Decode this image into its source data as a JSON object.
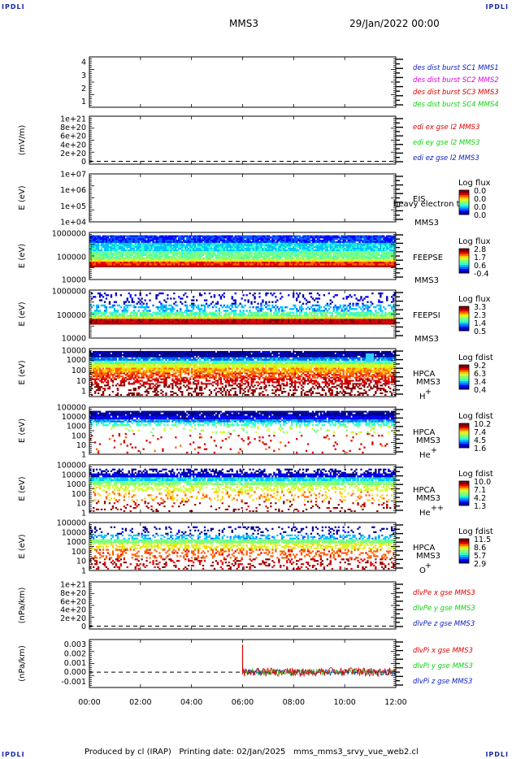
{
  "corners": {
    "tl": "IPDLI",
    "tr": "IPDLI",
    "bl": "IPDLI",
    "br": "IPDLI"
  },
  "header": {
    "spacecraft": "MMS3",
    "date": "29/Jan/2022 00:00"
  },
  "footer": {
    "producer": "Produced by cl (IRAP)",
    "printing": "Printing date: 02/Jan/2025",
    "file": "mms_mms3_srvy_vue_web2.cl"
  },
  "colors": {
    "red": "#e00000",
    "green": "#10d010",
    "blue": "#1020c0",
    "magenta": "#e000e0",
    "dark": "#000000"
  },
  "chart_data": {
    "type": "stacked-timeseries",
    "x_ticks": [
      "00:00",
      "02:00",
      "04:00",
      "06:00",
      "08:00",
      "10:00",
      "12:00"
    ],
    "xlim_hours": [
      0,
      12
    ],
    "panels": [
      {
        "id": "p1",
        "type": "line",
        "ylabel": "",
        "yticks": [
          "4",
          "3",
          "2",
          "1"
        ],
        "legend": [
          {
            "text": "des dist burst SC1 MMS1",
            "color": "#1020c0"
          },
          {
            "text": "des dist burst SC2 MMS2",
            "color": "#e000e0"
          },
          {
            "text": "des dist burst SC3 MMS3",
            "color": "#e00000"
          },
          {
            "text": "des dist burst SC4 MMS4",
            "color": "#10d010"
          }
        ]
      },
      {
        "id": "p2",
        "type": "line",
        "ylabel": "(mV/m)",
        "yticks": [
          "1e+21",
          "8e+20",
          "6e+20",
          "4e+20",
          "2e+20",
          "0"
        ],
        "zero_dashed": true,
        "legend": [
          {
            "text": "edi ex gse l2 MMS3",
            "color": "#e00000"
          },
          {
            "text": "edi ey gse l2 MMS3",
            "color": "#10d010"
          },
          {
            "text": "edi ez gse l2 MMS3",
            "color": "#1020c0"
          }
        ]
      },
      {
        "id": "p3",
        "type": "heatmap",
        "ylabel": "E (eV)",
        "yticks": [
          "1e+07",
          "1e+06",
          "1e+05",
          "1e+04"
        ],
        "instrument": "EIS",
        "sc": "MMS3",
        "overlay": "heavy electron to",
        "cbar_title": "Log flux",
        "cbar_ticks": [
          "0.0",
          "0.0",
          "0.0",
          "0.0"
        ],
        "has_data": false
      },
      {
        "id": "p4",
        "type": "heatmap",
        "ylabel": "E (eV)",
        "yticks": [
          "1000000",
          "100000",
          "10000"
        ],
        "instrument": "FEEPSE",
        "sc": "MMS3",
        "cbar_title": "Log flux",
        "cbar_ticks": [
          "2.8",
          "1.7",
          "0.6",
          "-0.4"
        ],
        "has_data": true
      },
      {
        "id": "p5",
        "type": "heatmap",
        "ylabel": "E (eV)",
        "yticks": [
          "1000000",
          "100000",
          "10000"
        ],
        "instrument": "FEEPSI",
        "sc": "MMS3",
        "cbar_title": "Log flux",
        "cbar_ticks": [
          "3.3",
          "2.3",
          "1.4",
          "0.5"
        ],
        "has_data": true
      },
      {
        "id": "p6",
        "type": "heatmap",
        "ylabel": "E (eV)",
        "yticks": [
          "10000",
          "1000",
          "100",
          "10",
          "1"
        ],
        "instrument": "HPCA",
        "sc": "MMS3",
        "species": "H",
        "charge": "+",
        "cbar_title": "Log fdist",
        "cbar_ticks": [
          "9.2",
          "6.3",
          "3.4",
          "0.4"
        ],
        "has_data": true
      },
      {
        "id": "p7",
        "type": "heatmap",
        "ylabel": "E (eV)",
        "yticks": [
          "100000",
          "10000",
          "1000",
          "100",
          "10",
          "1"
        ],
        "instrument": "HPCA",
        "sc": "MMS3",
        "species": "He",
        "charge": "+",
        "cbar_title": "Log fdist",
        "cbar_ticks": [
          "10.2",
          "7.4",
          "4.5",
          "1.6"
        ],
        "has_data": true
      },
      {
        "id": "p8",
        "type": "heatmap",
        "ylabel": "E (eV)",
        "yticks": [
          "100000",
          "10000",
          "1000",
          "100",
          "10",
          "1"
        ],
        "instrument": "HPCA",
        "sc": "MMS3",
        "species": "He",
        "charge": "++",
        "cbar_title": "Log fdist",
        "cbar_ticks": [
          "10.0",
          "7.1",
          "4.2",
          "1.3"
        ],
        "has_data": true
      },
      {
        "id": "p9",
        "type": "heatmap",
        "ylabel": "E (eV)",
        "yticks": [
          "100000",
          "10000",
          "1000",
          "100",
          "10",
          "1"
        ],
        "instrument": "HPCA",
        "sc": "MMS3",
        "species": "O",
        "charge": "+",
        "cbar_title": "Log fdist",
        "cbar_ticks": [
          "11.5",
          "8.6",
          "5.7",
          "2.9"
        ],
        "has_data": true
      },
      {
        "id": "p10",
        "type": "line",
        "ylabel": "(nPa/km)",
        "yticks": [
          "1e+21",
          "8e+20",
          "6e+20",
          "4e+20",
          "2e+20",
          "0"
        ],
        "zero_dashed": true,
        "legend": [
          {
            "text": "dlvPe x gse MMS3",
            "color": "#e00000"
          },
          {
            "text": "dlvPe y gse MMS3",
            "color": "#10d010"
          },
          {
            "text": "dlvPe z gse MMS3",
            "color": "#1020c0"
          }
        ]
      },
      {
        "id": "p11",
        "type": "line",
        "ylabel": "(nPa/km)",
        "yticks": [
          "0.003",
          "0.002",
          "0.001",
          "0.000",
          "-0.001"
        ],
        "ylim": [
          -0.0015,
          0.0032
        ],
        "zero_dashed": true,
        "data_start_hour": 6.0,
        "spike_value": 0.0027,
        "noise_range": [
          -0.0005,
          0.0005
        ],
        "legend": [
          {
            "text": "dlvPi x gse MMS3",
            "color": "#e00000"
          },
          {
            "text": "dlvPi y gse MMS3",
            "color": "#10d010"
          },
          {
            "text": "dlvPi z gse MMS3",
            "color": "#1020c0"
          }
        ]
      }
    ]
  }
}
